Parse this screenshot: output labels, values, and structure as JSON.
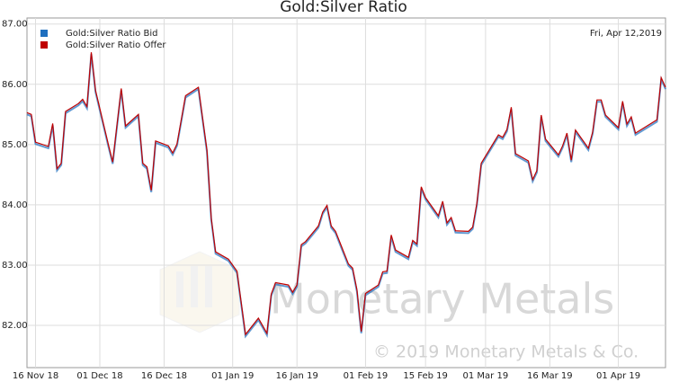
{
  "chart_data": {
    "type": "line",
    "title": "Gold:Silver Ratio",
    "date_note": "Fri, Apr 12,2019",
    "watermark": "Monetary Metals",
    "copyright": "© 2019 Monetary Metals & Co.",
    "grid": true,
    "legend": "top-left",
    "x": [
      "2018-11-14",
      "2018-11-15",
      "2018-11-16",
      "2018-11-19",
      "2018-11-20",
      "2018-11-21",
      "2018-11-22",
      "2018-11-23",
      "2018-11-26",
      "2018-11-27",
      "2018-11-28",
      "2018-11-29",
      "2018-11-30",
      "2018-12-03",
      "2018-12-04",
      "2018-12-06",
      "2018-12-07",
      "2018-12-10",
      "2018-12-11",
      "2018-12-12",
      "2018-12-13",
      "2018-12-14",
      "2018-12-17",
      "2018-12-18",
      "2018-12-19",
      "2018-12-21",
      "2018-12-24",
      "2018-12-26",
      "2018-12-27",
      "2018-12-28",
      "2018-12-31",
      "2019-01-02",
      "2019-01-04",
      "2019-01-07",
      "2019-01-09",
      "2019-01-10",
      "2019-01-11",
      "2019-01-14",
      "2019-01-15",
      "2019-01-16",
      "2019-01-17",
      "2019-01-18",
      "2019-01-21",
      "2019-01-22",
      "2019-01-23",
      "2019-01-24",
      "2019-01-25",
      "2019-01-28",
      "2019-01-29",
      "2019-01-30",
      "2019-01-31",
      "2019-02-01",
      "2019-02-04",
      "2019-02-05",
      "2019-02-06",
      "2019-02-07",
      "2019-02-08",
      "2019-02-11",
      "2019-02-12",
      "2019-02-13",
      "2019-02-14",
      "2019-02-15",
      "2019-02-18",
      "2019-02-19",
      "2019-02-20",
      "2019-02-21",
      "2019-02-22",
      "2019-02-25",
      "2019-02-26",
      "2019-02-27",
      "2019-02-28",
      "2019-03-04",
      "2019-03-05",
      "2019-03-06",
      "2019-03-07",
      "2019-03-08",
      "2019-03-11",
      "2019-03-12",
      "2019-03-13",
      "2019-03-14",
      "2019-03-15",
      "2019-03-18",
      "2019-03-19",
      "2019-03-20",
      "2019-03-21",
      "2019-03-22",
      "2019-03-25",
      "2019-03-26",
      "2019-03-27",
      "2019-03-28",
      "2019-03-29",
      "2019-04-01",
      "2019-04-02",
      "2019-04-03",
      "2019-04-04",
      "2019-04-05",
      "2019-04-10",
      "2019-04-11",
      "2019-04-12"
    ],
    "series": [
      {
        "name": "Gold:Silver Ratio Bid",
        "color": "#1f6fbf",
        "values": [
          85.5,
          85.47,
          85.01,
          84.94,
          85.32,
          84.57,
          84.66,
          85.52,
          85.65,
          85.72,
          85.6,
          86.5,
          85.87,
          84.97,
          84.68,
          85.9,
          85.28,
          85.47,
          84.66,
          84.6,
          84.21,
          85.03,
          84.95,
          84.83,
          84.98,
          85.78,
          85.92,
          84.88,
          83.75,
          83.19,
          83.07,
          82.87,
          81.82,
          82.09,
          81.84,
          82.49,
          82.68,
          82.64,
          82.52,
          82.64,
          83.31,
          83.36,
          83.62,
          83.85,
          83.96,
          83.62,
          83.53,
          82.99,
          82.92,
          82.56,
          81.87,
          82.5,
          82.64,
          82.86,
          82.87,
          83.47,
          83.22,
          83.1,
          83.38,
          83.32,
          84.27,
          84.09,
          83.79,
          84.03,
          83.67,
          83.76,
          83.54,
          83.53,
          83.6,
          84.0,
          84.66,
          85.13,
          85.09,
          85.22,
          85.59,
          84.82,
          84.7,
          84.39,
          84.54,
          85.46,
          85.06,
          84.8,
          84.95,
          85.16,
          84.71,
          85.21,
          84.91,
          85.18,
          85.71,
          85.71,
          85.46,
          85.25,
          85.69,
          85.31,
          85.43,
          85.16,
          85.38,
          86.08,
          85.92
        ]
      },
      {
        "name": "Gold:Silver Ratio Offer",
        "color": "#c00000",
        "values": [
          85.53,
          85.5,
          85.04,
          84.97,
          85.35,
          84.6,
          84.69,
          85.55,
          85.68,
          85.75,
          85.63,
          86.53,
          85.9,
          85.0,
          84.71,
          85.93,
          85.31,
          85.5,
          84.69,
          84.63,
          84.24,
          85.06,
          84.98,
          84.86,
          85.01,
          85.81,
          85.95,
          84.91,
          83.78,
          83.22,
          83.1,
          82.9,
          81.85,
          82.12,
          81.87,
          82.52,
          82.71,
          82.67,
          82.55,
          82.67,
          83.34,
          83.39,
          83.65,
          83.88,
          83.99,
          83.65,
          83.56,
          83.02,
          82.95,
          82.59,
          81.9,
          82.53,
          82.67,
          82.89,
          82.9,
          83.5,
          83.25,
          83.13,
          83.41,
          83.35,
          84.3,
          84.12,
          83.82,
          84.06,
          83.7,
          83.79,
          83.57,
          83.56,
          83.63,
          84.03,
          84.69,
          85.16,
          85.12,
          85.25,
          85.62,
          84.85,
          84.73,
          84.42,
          84.57,
          85.49,
          85.09,
          84.83,
          84.98,
          85.19,
          84.74,
          85.24,
          84.94,
          85.21,
          85.74,
          85.74,
          85.49,
          85.28,
          85.72,
          85.34,
          85.46,
          85.19,
          85.41,
          86.11,
          85.95
        ]
      }
    ],
    "xlim": [
      "2018-11-14",
      "2019-04-12"
    ],
    "xticks": [
      {
        "value": "2018-11-16",
        "label": "16 Nov 18"
      },
      {
        "value": "2018-12-01",
        "label": "01 Dec 18"
      },
      {
        "value": "2018-12-16",
        "label": "16 Dec 18"
      },
      {
        "value": "2019-01-01",
        "label": "01 Jan 19"
      },
      {
        "value": "2019-01-16",
        "label": "16 Jan 19"
      },
      {
        "value": "2019-02-01",
        "label": "01 Feb 19"
      },
      {
        "value": "2019-02-15",
        "label": "15 Feb 19"
      },
      {
        "value": "2019-03-01",
        "label": "01 Mar 19"
      },
      {
        "value": "2019-03-16",
        "label": "16 Mar 19"
      },
      {
        "value": "2019-04-01",
        "label": "01 Apr 19"
      }
    ],
    "ylim": [
      81.3,
      87.1
    ],
    "yticks": [
      {
        "value": 82,
        "label": "82.00"
      },
      {
        "value": 83,
        "label": "83.00"
      },
      {
        "value": 84,
        "label": "84.00"
      },
      {
        "value": 85,
        "label": "85.00"
      },
      {
        "value": 86,
        "label": "86.00"
      },
      {
        "value": 87,
        "label": "87.00"
      }
    ]
  }
}
